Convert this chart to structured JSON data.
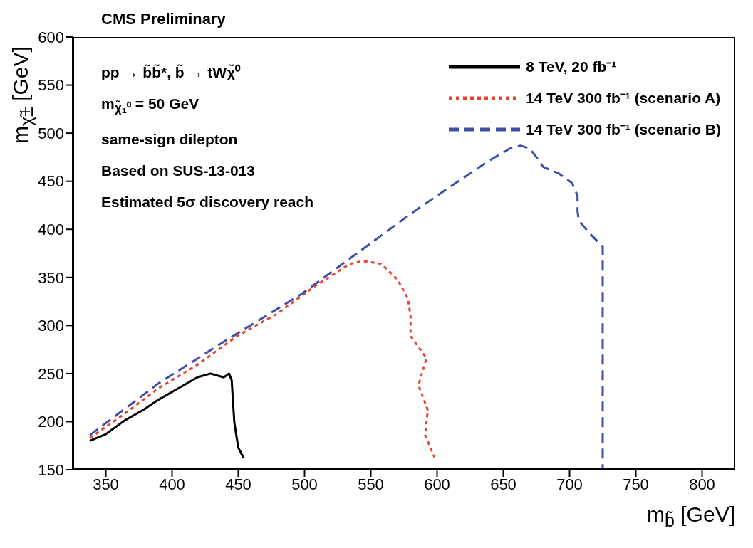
{
  "chart_data": {
    "type": "line",
    "title": "CMS Preliminary",
    "xlabel": "m$_{b̃}$ [GeV]",
    "ylabel": "m$_{χ̃±}$ [GeV]",
    "annotations": [
      "pp → b̃b̃*, b̃ → tWχ̃⁰",
      "m$_{χ̃₁⁰}$ = 50 GeV",
      "same-sign dilepton",
      "Based on SUS-13-013",
      "Estimated 5σ discovery reach"
    ],
    "xlim": [
      325,
      825
    ],
    "xticks": [
      350,
      400,
      450,
      500,
      550,
      600,
      650,
      700,
      750,
      800
    ],
    "ylim": [
      150,
      600
    ],
    "yticks": [
      150,
      200,
      250,
      300,
      350,
      400,
      450,
      500,
      550,
      600
    ],
    "legend": "top right",
    "marker": "none",
    "series": [
      {
        "name": "8 TeV, 20 fb⁻¹",
        "color": "#000000",
        "line_style": "solid",
        "x": [
          338,
          350,
          364,
          378,
          390,
          409,
          419,
          429,
          439,
          443,
          445,
          447,
          450,
          454
        ],
        "values": [
          180,
          187,
          201,
          212,
          223,
          238,
          246,
          250,
          246,
          250,
          243,
          199,
          173,
          162
        ]
      },
      {
        "name": "14 TeV 300 fb⁻¹ (scenario A)",
        "color": "#e8432e",
        "line_style": "dotted",
        "x": [
          338,
          364,
          390,
          419,
          449,
          479,
          508,
          534,
          544,
          558,
          570,
          578,
          580,
          580,
          592,
          586,
          593,
          591,
          598
        ],
        "values": [
          183,
          208,
          235,
          259,
          289,
          312,
          341,
          364,
          367,
          364,
          348,
          328,
          310,
          289,
          266,
          238,
          212,
          186,
          163
        ]
      },
      {
        "name": "14 TeV 300 fb⁻¹ (scenario B)",
        "color": "#3f4fa8",
        "line_style": "dashed",
        "x": [
          338,
          390,
          439,
          498,
          582,
          615,
          640,
          655,
          663,
          670,
          675,
          680,
          692,
          702,
          706,
          706,
          707,
          715,
          725,
          725
        ],
        "values": [
          186,
          240,
          283,
          333,
          418,
          449,
          472,
          484,
          487,
          484,
          475,
          465,
          458,
          448,
          435,
          419,
          409,
          396,
          382,
          150
        ]
      }
    ]
  }
}
